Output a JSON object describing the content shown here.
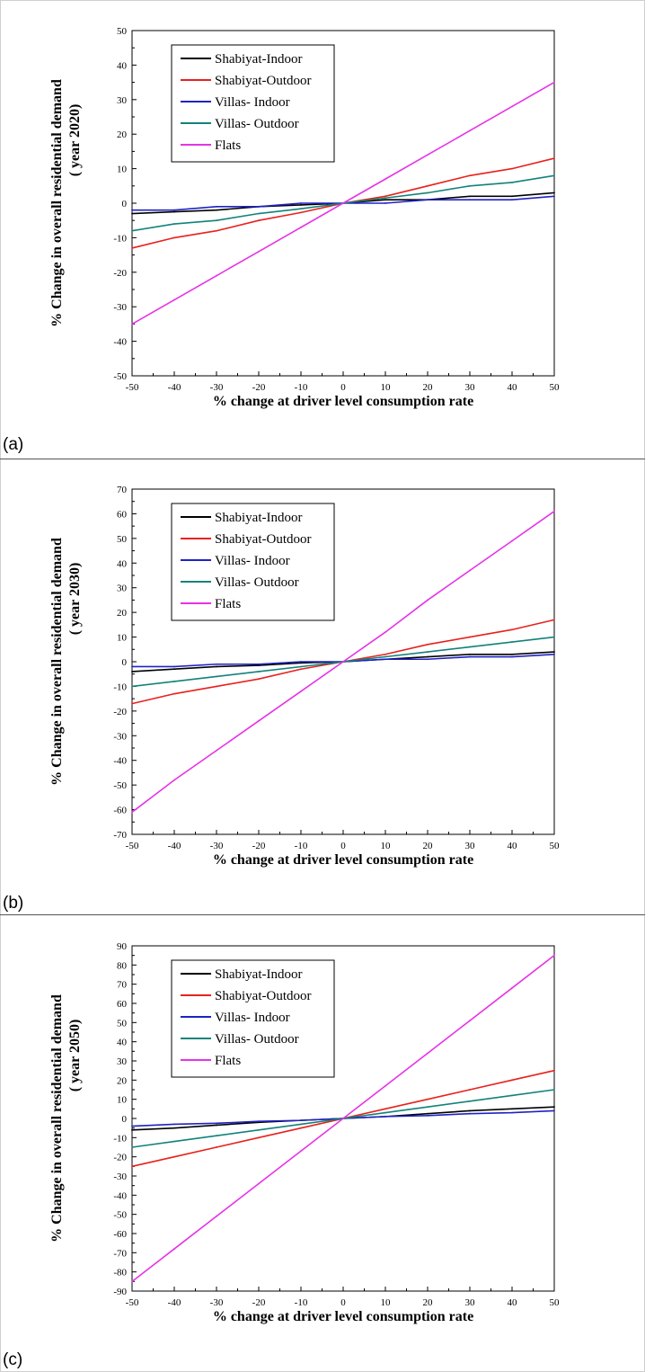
{
  "chart_data": [
    {
      "type": "line",
      "panel_label": "(a)",
      "xlabel": "% change at driver level consumption rate",
      "ylabel_lines": [
        "% Change in overall residential demand",
        "( year 2020)"
      ],
      "xlim": [
        -50,
        50
      ],
      "ylim": [
        -50,
        50
      ],
      "x_ticks": [
        -50,
        -40,
        -30,
        -20,
        -10,
        0,
        10,
        20,
        30,
        40,
        50
      ],
      "y_ticks": [
        -50,
        -40,
        -30,
        -20,
        -10,
        0,
        10,
        20,
        30,
        40,
        50
      ],
      "x": [
        -50,
        -40,
        -30,
        -20,
        -10,
        0,
        10,
        20,
        30,
        40,
        50
      ],
      "legend_position": "top-left",
      "series": [
        {
          "name": "Shabiyat-Indoor",
          "color": "#000000",
          "values": [
            -3,
            -2.5,
            -2,
            -1,
            -0.5,
            0,
            1,
            1,
            2,
            2,
            3
          ]
        },
        {
          "name": "Shabiyat-Outdoor",
          "color": "#e8211c",
          "values": [
            -13,
            -10,
            -8,
            -5,
            -2.7,
            0,
            2,
            5,
            8,
            10,
            13
          ]
        },
        {
          "name": "Villas- Indoor",
          "color": "#1f22c4",
          "values": [
            -2,
            -2,
            -1,
            -1,
            0,
            0,
            0,
            1,
            1,
            1,
            2
          ]
        },
        {
          "name": "Villas- Outdoor",
          "color": "#12827a",
          "values": [
            -8,
            -6,
            -5,
            -3,
            -1.6,
            0,
            1.5,
            3,
            5,
            6,
            8
          ]
        },
        {
          "name": "Flats",
          "color": "#e633e6",
          "values": [
            -35,
            -28,
            -21,
            -14,
            -7,
            0,
            7,
            14,
            21,
            28,
            35
          ]
        }
      ]
    },
    {
      "type": "line",
      "panel_label": "(b)",
      "xlabel": "% change at driver level consumption rate",
      "ylabel_lines": [
        "% Change in overall residential demand",
        "( year 2030)"
      ],
      "xlim": [
        -50,
        50
      ],
      "ylim": [
        -70,
        70
      ],
      "x_ticks": [
        -50,
        -40,
        -30,
        -20,
        -10,
        0,
        10,
        20,
        30,
        40,
        50
      ],
      "y_ticks": [
        -70,
        -60,
        -50,
        -40,
        -30,
        -20,
        -10,
        0,
        10,
        20,
        30,
        40,
        50,
        60,
        70
      ],
      "x": [
        -50,
        -40,
        -30,
        -20,
        -10,
        0,
        10,
        20,
        30,
        40,
        50
      ],
      "legend_position": "top-left",
      "series": [
        {
          "name": "Shabiyat-Indoor",
          "color": "#000000",
          "values": [
            -4,
            -3,
            -2,
            -1.5,
            -0.5,
            0,
            1,
            2,
            3,
            3,
            4
          ]
        },
        {
          "name": "Shabiyat-Outdoor",
          "color": "#e8211c",
          "values": [
            -17,
            -13,
            -10,
            -7,
            -3,
            0,
            3,
            7,
            10,
            13,
            17
          ]
        },
        {
          "name": "Villas- Indoor",
          "color": "#1f22c4",
          "values": [
            -2,
            -2,
            -1,
            -1,
            0,
            0,
            1,
            1,
            2,
            2,
            3
          ]
        },
        {
          "name": "Villas- Outdoor",
          "color": "#12827a",
          "values": [
            -10,
            -8,
            -6,
            -4,
            -2,
            0,
            2,
            4,
            6,
            8,
            10
          ]
        },
        {
          "name": "Flats",
          "color": "#e633e6",
          "values": [
            -61,
            -48,
            -36,
            -24,
            -12,
            0,
            12,
            25,
            37,
            49,
            61
          ]
        }
      ]
    },
    {
      "type": "line",
      "panel_label": "(c)",
      "xlabel": "% change at driver level consumption rate",
      "ylabel_lines": [
        "% Change in overall residential demand",
        "( year 2050)"
      ],
      "xlim": [
        -50,
        50
      ],
      "ylim": [
        -90,
        90
      ],
      "x_ticks": [
        -50,
        -40,
        -30,
        -20,
        -10,
        0,
        10,
        20,
        30,
        40,
        50
      ],
      "y_ticks": [
        -90,
        -80,
        -70,
        -60,
        -50,
        -40,
        -30,
        -20,
        -10,
        0,
        10,
        20,
        30,
        40,
        50,
        60,
        70,
        80,
        90
      ],
      "x": [
        -50,
        -40,
        -30,
        -20,
        -10,
        0,
        10,
        20,
        30,
        40,
        50
      ],
      "legend_position": "top-left",
      "series": [
        {
          "name": "Shabiyat-Indoor",
          "color": "#000000",
          "values": [
            -6,
            -5,
            -3.5,
            -2,
            -1,
            0,
            1,
            2.5,
            4,
            5,
            6
          ]
        },
        {
          "name": "Shabiyat-Outdoor",
          "color": "#e8211c",
          "values": [
            -25,
            -20,
            -15,
            -10,
            -5,
            0,
            5,
            10,
            15,
            20,
            25
          ]
        },
        {
          "name": "Villas- Indoor",
          "color": "#1f22c4",
          "values": [
            -4,
            -3,
            -2.5,
            -1.5,
            -1,
            0,
            1,
            1.5,
            2.5,
            3,
            4
          ]
        },
        {
          "name": "Villas- Outdoor",
          "color": "#12827a",
          "values": [
            -15,
            -12,
            -9,
            -6,
            -3,
            0,
            3,
            6,
            9,
            12,
            15
          ]
        },
        {
          "name": "Flats",
          "color": "#e633e6",
          "values": [
            -85,
            -68,
            -51,
            -34,
            -17,
            0,
            17,
            34,
            51,
            68,
            85
          ]
        }
      ]
    }
  ]
}
